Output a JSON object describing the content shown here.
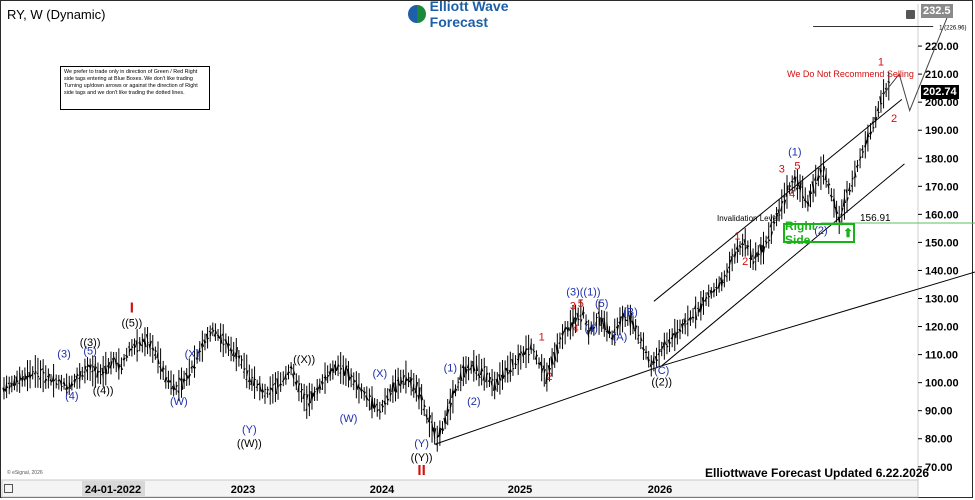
{
  "header": {
    "symbol_label": "RY, W (Dynamic)",
    "brand": "Elliott Wave Forecast",
    "disclaimer": "We prefer to trade only in direction of Green / Red Right side tags entering at Blue Boxes. We don't like trading Turning up/down arrows or against the direction of Right side tags and we don't like trading the dotted lines.",
    "updated": "Elliottwave Forecast Updated 6.22.2026",
    "copyright": "© eSignal, 2026"
  },
  "colors": {
    "blue_label": "#1f2fae",
    "red_label": "#d40f0f",
    "black_label": "#000000",
    "invalidation_line": "#5cc05c",
    "right_side_green": "#19b319",
    "price_bar": "#000000",
    "last_price_bg": "#000000"
  },
  "chart_data": {
    "type": "ohlc",
    "title": "RY, W (Dynamic)",
    "x_axis": {
      "labels": [
        "24-01-2022",
        "2023",
        "2024",
        "2025",
        "2026"
      ]
    },
    "y_axis": {
      "ticks": [
        70,
        80,
        90,
        100,
        110,
        120,
        130,
        140,
        150,
        160,
        170,
        180,
        190,
        200,
        210,
        220
      ],
      "ylim": [
        66,
        235
      ],
      "last_price": 202.74,
      "top_price": 232.5
    },
    "price_path": [
      [
        0,
        98
      ],
      [
        12,
        104
      ],
      [
        18,
        101
      ],
      [
        25,
        99
      ],
      [
        32,
        105
      ],
      [
        37,
        103
      ],
      [
        42,
        108
      ],
      [
        45,
        106
      ],
      [
        48,
        112
      ],
      [
        55,
        115
      ],
      [
        59,
        109
      ],
      [
        62,
        102
      ],
      [
        66,
        98
      ],
      [
        70,
        102
      ],
      [
        76,
        113
      ],
      [
        80,
        119
      ],
      [
        85,
        114
      ],
      [
        89,
        110
      ],
      [
        92,
        106
      ],
      [
        94,
        102
      ],
      [
        96,
        100
      ],
      [
        100,
        96
      ],
      [
        105,
        99
      ],
      [
        110,
        105
      ],
      [
        113,
        98
      ],
      [
        116,
        93
      ],
      [
        119,
        96
      ],
      [
        124,
        103
      ],
      [
        128,
        106
      ],
      [
        132,
        103
      ],
      [
        136,
        98
      ],
      [
        141,
        93
      ],
      [
        144,
        90
      ],
      [
        147,
        95
      ],
      [
        150,
        99
      ],
      [
        154,
        102
      ],
      [
        158,
        98
      ],
      [
        160,
        94
      ],
      [
        162,
        88
      ],
      [
        164,
        84
      ],
      [
        166,
        80
      ],
      [
        168,
        84
      ],
      [
        172,
        95
      ],
      [
        176,
        104
      ],
      [
        180,
        106
      ],
      [
        184,
        103
      ],
      [
        188,
        99
      ],
      [
        192,
        104
      ],
      [
        198,
        109
      ],
      [
        202,
        113
      ],
      [
        205,
        107
      ],
      [
        208,
        102
      ],
      [
        213,
        115
      ],
      [
        218,
        122
      ],
      [
        222,
        125
      ],
      [
        224,
        118
      ],
      [
        226,
        121
      ],
      [
        228,
        123
      ],
      [
        231,
        120
      ],
      [
        233,
        116
      ],
      [
        236,
        122
      ],
      [
        239,
        124
      ],
      [
        242,
        119
      ],
      [
        245,
        113
      ],
      [
        248,
        106
      ],
      [
        252,
        112
      ],
      [
        258,
        118
      ],
      [
        265,
        125
      ],
      [
        270,
        131
      ],
      [
        276,
        137
      ],
      [
        280,
        146
      ],
      [
        284,
        150
      ],
      [
        287,
        144
      ],
      [
        291,
        148
      ],
      [
        295,
        157
      ],
      [
        300,
        168
      ],
      [
        303,
        172
      ],
      [
        306,
        168
      ],
      [
        308,
        164
      ],
      [
        311,
        172
      ],
      [
        314,
        176
      ],
      [
        317,
        167
      ],
      [
        320,
        158
      ],
      [
        324,
        169
      ],
      [
        328,
        180
      ],
      [
        333,
        192
      ],
      [
        337,
        203
      ],
      [
        340,
        207
      ]
    ],
    "trendlines": [
      {
        "from": [
          165,
          78
        ],
        "to": [
          252,
          106
        ]
      },
      {
        "from": [
          252,
          106
        ],
        "to": [
          374,
          140
        ]
      },
      {
        "from": [
          252,
          106
        ],
        "to": [
          345,
          178
        ]
      },
      {
        "from": [
          249,
          129
        ],
        "to": [
          344,
          201
        ]
      }
    ],
    "projection": [
      [
        337,
        203
      ],
      [
        343,
        210
      ],
      [
        347,
        197
      ],
      [
        363,
        234
      ]
    ],
    "fib_line": {
      "x_from": 310,
      "x_to": 356,
      "price": 226.96,
      "label": "1 (226.96)"
    },
    "invalidation": {
      "x_from": 313,
      "x_to": 386,
      "price": 156.91,
      "label": "Invalidation Level",
      "value_label": "156.91"
    },
    "annotations": [
      {
        "text": "(3)",
        "x": 23,
        "y": 109,
        "color": "blue"
      },
      {
        "text": "(5)",
        "x": 33,
        "y": 110,
        "color": "blue"
      },
      {
        "text": "((3))",
        "x": 33,
        "y": 113,
        "color": "black"
      },
      {
        "text": "(4)",
        "x": 26,
        "y": 94,
        "color": "blue"
      },
      {
        "text": "((4))",
        "x": 38,
        "y": 96,
        "color": "black"
      },
      {
        "text": "I",
        "x": 49,
        "y": 125,
        "color": "red"
      },
      {
        "text": "((5))",
        "x": 49,
        "y": 120,
        "color": "black"
      },
      {
        "text": "(X)",
        "x": 72,
        "y": 109,
        "color": "blue"
      },
      {
        "text": "(W)",
        "x": 67,
        "y": 92,
        "color": "blue"
      },
      {
        "text": "(Y)",
        "x": 94,
        "y": 82,
        "color": "blue"
      },
      {
        "text": "((W))",
        "x": 94,
        "y": 77,
        "color": "black"
      },
      {
        "text": "((X))",
        "x": 115,
        "y": 107,
        "color": "black"
      },
      {
        "text": "(X)",
        "x": 144,
        "y": 102,
        "color": "blue"
      },
      {
        "text": "(W)",
        "x": 132,
        "y": 86,
        "color": "blue"
      },
      {
        "text": "(Y)",
        "x": 160,
        "y": 77,
        "color": "blue"
      },
      {
        "text": "((Y))",
        "x": 160,
        "y": 72,
        "color": "black"
      },
      {
        "text": "II",
        "x": 160,
        "y": 67,
        "color": "red"
      },
      {
        "text": "(1)",
        "x": 171,
        "y": 104,
        "color": "blue"
      },
      {
        "text": "(2)",
        "x": 180,
        "y": 92,
        "color": "blue"
      },
      {
        "text": "1",
        "x": 206,
        "y": 115,
        "color": "red"
      },
      {
        "text": "2",
        "x": 209,
        "y": 101,
        "color": "red"
      },
      {
        "text": "(3)((1))",
        "x": 222,
        "y": 131,
        "color": "blue"
      },
      {
        "text": "3",
        "x": 218,
        "y": 126,
        "color": "red"
      },
      {
        "text": "5",
        "x": 221,
        "y": 127,
        "color": "red"
      },
      {
        "text": "4",
        "x": 219,
        "y": 118,
        "color": "red"
      },
      {
        "text": "(4)",
        "x": 225,
        "y": 118,
        "color": "blue"
      },
      {
        "text": "(5)",
        "x": 229,
        "y": 127,
        "color": "blue"
      },
      {
        "text": "(B)",
        "x": 240,
        "y": 124,
        "color": "blue"
      },
      {
        "text": "(A)",
        "x": 236,
        "y": 115,
        "color": "blue"
      },
      {
        "text": "(C)",
        "x": 252,
        "y": 103,
        "color": "blue"
      },
      {
        "text": "((2))",
        "x": 252,
        "y": 99,
        "color": "black"
      },
      {
        "text": "1",
        "x": 281,
        "y": 151,
        "color": "red"
      },
      {
        "text": "2",
        "x": 284,
        "y": 142,
        "color": "red"
      },
      {
        "text": "3",
        "x": 298,
        "y": 175,
        "color": "red"
      },
      {
        "text": "5",
        "x": 304,
        "y": 176,
        "color": "red"
      },
      {
        "text": "(1)",
        "x": 303,
        "y": 181,
        "color": "blue"
      },
      {
        "text": "4",
        "x": 302,
        "y": 166,
        "color": "red"
      },
      {
        "text": "(2)",
        "x": 313,
        "y": 153,
        "color": "blue"
      },
      {
        "text": "1",
        "x": 336,
        "y": 213,
        "color": "red"
      },
      {
        "text": "2",
        "x": 341,
        "y": 193,
        "color": "red"
      },
      {
        "text": "We Do Not Recommend Selling",
        "x": 300,
        "y": 209,
        "color": "red"
      }
    ],
    "right_side_label": "Right Side",
    "right_side_arrow": "up-arrow-icon"
  }
}
